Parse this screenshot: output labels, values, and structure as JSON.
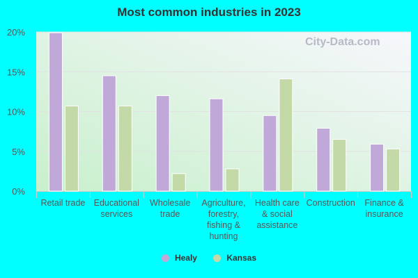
{
  "chart_data": {
    "type": "bar",
    "title": "Most common industries in 2023",
    "categories": [
      "Retail trade",
      "Educational services",
      "Wholesale trade",
      "Agriculture, forestry, fishing & hunting",
      "Health care & social assistance",
      "Construction",
      "Finance & insurance"
    ],
    "category_lines": [
      [
        "Retail trade"
      ],
      [
        "Educational",
        "services"
      ],
      [
        "Wholesale",
        "trade"
      ],
      [
        "Agriculture,",
        "forestry,",
        "fishing &",
        "hunting"
      ],
      [
        "Health care",
        "& social",
        "assistance"
      ],
      [
        "Construction"
      ],
      [
        "Finance &",
        "insurance"
      ]
    ],
    "series": [
      {
        "name": "Healy",
        "color": "#c0a8d8",
        "values": [
          19.9,
          14.5,
          12.0,
          11.6,
          9.5,
          7.9,
          5.9
        ]
      },
      {
        "name": "Kansas",
        "color": "#c4d9a8",
        "values": [
          10.7,
          10.7,
          2.2,
          2.8,
          14.1,
          6.5,
          5.3
        ]
      }
    ],
    "ylim": [
      0,
      20
    ],
    "yticks": [
      "0%",
      "5%",
      "10%",
      "15%",
      "20%"
    ],
    "grid": true,
    "legend": "bottom"
  },
  "watermark": "City-Data.com"
}
